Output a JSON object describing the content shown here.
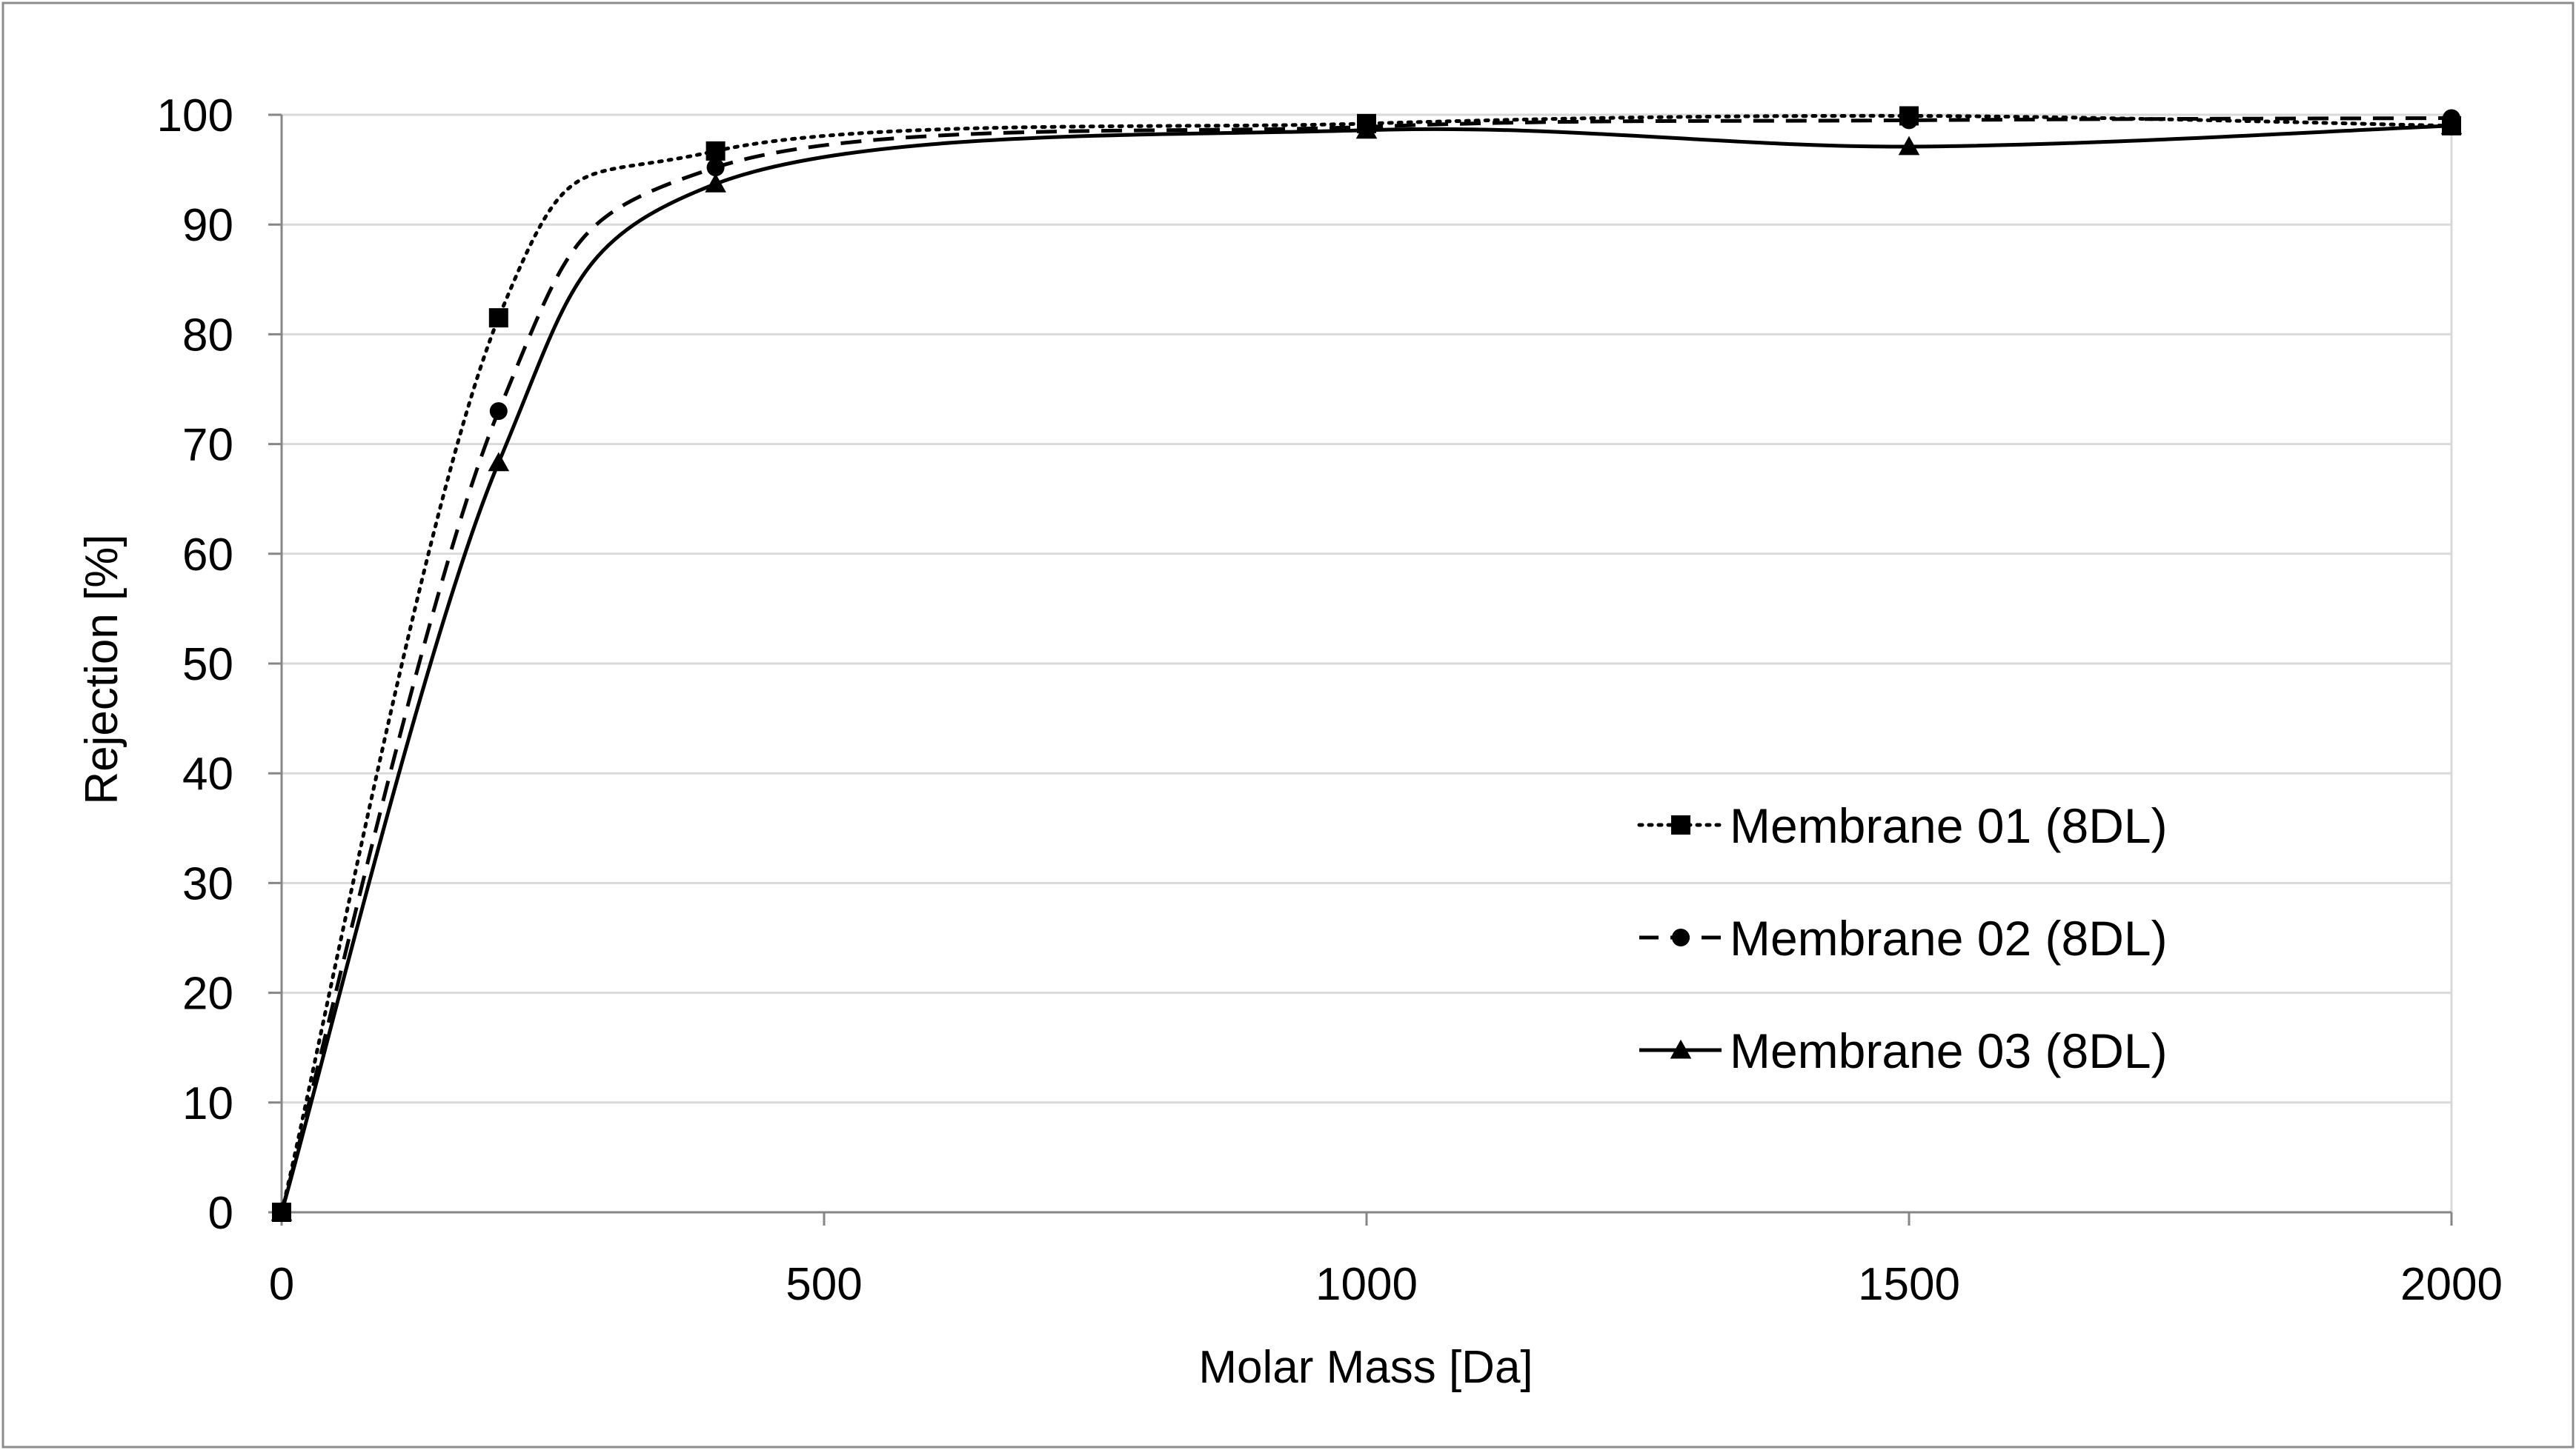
{
  "chart_data": {
    "type": "line",
    "title": "",
    "xlabel": "Molar Mass [Da]",
    "ylabel": "Rejection [%]",
    "xlim": [
      0,
      2000
    ],
    "ylim": [
      0,
      100
    ],
    "xticks": [
      0,
      500,
      1000,
      1500,
      2000
    ],
    "yticks": [
      0,
      10,
      20,
      30,
      40,
      50,
      60,
      70,
      80,
      90,
      100
    ],
    "grid": "horizontal",
    "legend_position": "right-center",
    "series": [
      {
        "name": "Membrane 01 (8DL)",
        "line_style": "dotted",
        "marker": "square",
        "x": [
          0,
          200,
          400,
          1000,
          1500,
          2000
        ],
        "y": [
          0,
          81.5,
          96.7,
          99.2,
          99.9,
          99.0
        ]
      },
      {
        "name": "Membrane 02 (8DL)",
        "line_style": "dashed",
        "marker": "circle",
        "x": [
          0,
          200,
          400,
          1000,
          1500,
          2000
        ],
        "y": [
          0,
          73.0,
          95.2,
          98.9,
          99.5,
          99.7
        ]
      },
      {
        "name": "Membrane 03 (8DL)",
        "line_style": "solid",
        "marker": "triangle",
        "x": [
          0,
          200,
          400,
          1000,
          1500,
          2000
        ],
        "y": [
          0,
          68.3,
          93.7,
          98.6,
          97.1,
          99.0
        ]
      }
    ],
    "colors": {
      "line": "#000000",
      "grid": "#d9d9d9",
      "axis": "#868686",
      "frame": "#8c8c8c"
    }
  }
}
